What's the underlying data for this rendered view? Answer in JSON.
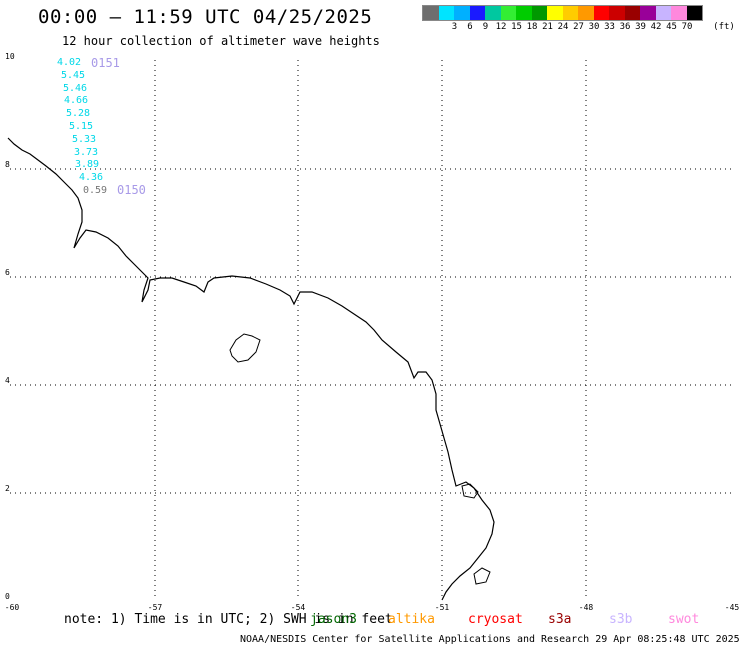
{
  "title": "00:00 – 11:59 UTC 04/25/2025",
  "subtitle": "12 hour collection of altimeter wave heights",
  "color_scale": {
    "unit": "(ft)",
    "swatches": [
      {
        "color": "#6e6e6e",
        "label": ""
      },
      {
        "color": "#00e4ff",
        "label": "3"
      },
      {
        "color": "#00b0ff",
        "label": "6"
      },
      {
        "color": "#1a1aff",
        "label": "9"
      },
      {
        "color": "#00c8a0",
        "label": "12"
      },
      {
        "color": "#33ee33",
        "label": "15"
      },
      {
        "color": "#00cc00",
        "label": "18"
      },
      {
        "color": "#009900",
        "label": "21"
      },
      {
        "color": "#ffff00",
        "label": "24"
      },
      {
        "color": "#ffcc00",
        "label": "27"
      },
      {
        "color": "#ff9900",
        "label": "30"
      },
      {
        "color": "#ff0000",
        "label": "33"
      },
      {
        "color": "#cc0000",
        "label": "36"
      },
      {
        "color": "#990000",
        "label": "39"
      },
      {
        "color": "#990099",
        "label": "42"
      },
      {
        "color": "#c8b4ff",
        "label": "45"
      },
      {
        "color": "#ff88dd",
        "label": "70"
      },
      {
        "color": "#000000",
        "label": ""
      }
    ]
  },
  "map": {
    "lat_ticks": [
      "10",
      "8",
      "6",
      "4",
      "2",
      "0"
    ],
    "lon_ticks": [
      "-60",
      "-57",
      "-54",
      "-51",
      "-48",
      "-45"
    ]
  },
  "wave_heights": [
    {
      "value": "4.02",
      "dim": false
    },
    {
      "value": "5.45",
      "dim": false
    },
    {
      "value": "5.46",
      "dim": false
    },
    {
      "value": "4.66",
      "dim": false
    },
    {
      "value": "5.28",
      "dim": false
    },
    {
      "value": "5.15",
      "dim": false
    },
    {
      "value": "5.33",
      "dim": false
    },
    {
      "value": "3.73",
      "dim": false
    },
    {
      "value": "3.89",
      "dim": false
    },
    {
      "value": "4.36",
      "dim": false
    },
    {
      "value": "0.59",
      "dim": true
    }
  ],
  "passes": [
    "0151",
    "0150"
  ],
  "note": "note: 1) Time is in UTC; 2) SWH is in feet",
  "satellites": [
    {
      "name": "jason3",
      "color": "#006600"
    },
    {
      "name": "altika",
      "color": "#ff9900"
    },
    {
      "name": "cryosat",
      "color": "#ff0000"
    },
    {
      "name": "s3a",
      "color": "#990000"
    },
    {
      "name": "s3b",
      "color": "#c8b4ff"
    },
    {
      "name": "swot",
      "color": "#ff88dd"
    }
  ],
  "footer": "NOAA/NESDIS Center for Satellite Applications and Research    29 Apr 08:25:48 UTC 2025"
}
